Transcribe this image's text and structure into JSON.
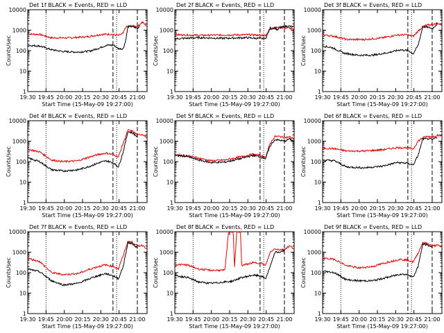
{
  "panel_titles": [
    "Det 1f BLACK = Events, RED = LLD",
    "Det 2f BLACK = Events, RED = LLD",
    "Det 3f BLACK = Events, RED = LLD",
    "Det 4f BLACK = Events, RED = LLD",
    "Det 5f BLACK = Events, RED = LLD",
    "Det 6f BLACK = Events, RED = LLD",
    "Det 7f BLACK = Events, RED = LLD",
    "Det 8f BLACK = Events, RED = LLD",
    "Det 9f BLACK = Events, RED = LLD"
  ],
  "chart_data": {
    "type": "line",
    "xlabel": "Start Time (15-May-09 19:27:00)",
    "ylabel": "Counts/sec",
    "y_scale": "log",
    "ylim": [
      1,
      10000
    ],
    "y_ticks": [
      "1",
      "10",
      "100",
      "1000",
      "10000"
    ],
    "xlim": [
      "19:30",
      "21:08"
    ],
    "x_ticks": [
      "19:30",
      "19:45",
      "20:00",
      "20:15",
      "20:30",
      "20:45",
      "21:00"
    ],
    "series_colors": {
      "events": "#000000",
      "lld": "#e00000"
    },
    "vertical_markers": [
      {
        "style": "dotted",
        "time": "19:45"
      },
      {
        "style": "dashed",
        "time": "20:40"
      },
      {
        "style": "dotted",
        "time": "20:43"
      },
      {
        "style": "dashed",
        "time": "21:00"
      }
    ],
    "panels": [
      {
        "det": "1f",
        "events": [
          [
            0,
            180
          ],
          [
            0.1,
            170
          ],
          [
            0.2,
            110
          ],
          [
            0.3,
            90
          ],
          [
            0.42,
            85
          ],
          [
            0.52,
            95
          ],
          [
            0.6,
            135
          ],
          [
            0.66,
            185
          ],
          [
            0.72,
            185
          ],
          [
            0.76,
            125
          ],
          [
            0.8,
            125
          ],
          [
            0.82,
            300
          ],
          [
            0.84,
            1500
          ],
          [
            0.88,
            1500
          ],
          [
            0.92,
            1200
          ],
          [
            0.94,
            1700
          ]
        ],
        "lld": [
          [
            0,
            650
          ],
          [
            0.1,
            620
          ],
          [
            0.2,
            420
          ],
          [
            0.35,
            420
          ],
          [
            0.5,
            480
          ],
          [
            0.62,
            620
          ],
          [
            0.7,
            640
          ],
          [
            0.76,
            550
          ],
          [
            0.8,
            700
          ],
          [
            0.82,
            1400
          ],
          [
            0.87,
            1600
          ],
          [
            0.92,
            1500
          ],
          [
            0.96,
            2500
          ],
          [
            1,
            1500
          ]
        ]
      },
      {
        "det": "2f",
        "events": [
          [
            0,
            380
          ],
          [
            0.2,
            430
          ],
          [
            0.4,
            400
          ],
          [
            0.6,
            430
          ],
          [
            0.76,
            380
          ],
          [
            0.8,
            1300
          ],
          [
            0.84,
            1300
          ],
          [
            0.86,
            1000
          ],
          [
            0.88,
            1300
          ],
          [
            0.92,
            1500
          ],
          [
            0.95,
            1600
          ],
          [
            1,
            1400
          ]
        ],
        "lld": [
          [
            0,
            600
          ],
          [
            0.2,
            560
          ],
          [
            0.4,
            580
          ],
          [
            0.6,
            600
          ],
          [
            0.76,
            560
          ],
          [
            0.8,
            1100
          ],
          [
            0.84,
            1300
          ],
          [
            0.88,
            1400
          ],
          [
            0.92,
            1300
          ],
          [
            0.96,
            1300
          ],
          [
            1,
            1000
          ]
        ]
      },
      {
        "det": "3f",
        "events": [
          [
            0,
            170
          ],
          [
            0.08,
            140
          ],
          [
            0.18,
            75
          ],
          [
            0.3,
            60
          ],
          [
            0.42,
            60
          ],
          [
            0.55,
            80
          ],
          [
            0.65,
            110
          ],
          [
            0.72,
            100
          ],
          [
            0.76,
            70
          ],
          [
            0.8,
            180
          ],
          [
            0.84,
            1500
          ],
          [
            0.88,
            1400
          ],
          [
            0.92,
            1200
          ],
          [
            0.96,
            2000
          ]
        ],
        "lld": [
          [
            0,
            600
          ],
          [
            0.1,
            500
          ],
          [
            0.2,
            350
          ],
          [
            0.35,
            350
          ],
          [
            0.5,
            420
          ],
          [
            0.62,
            580
          ],
          [
            0.7,
            600
          ],
          [
            0.76,
            500
          ],
          [
            0.8,
            900
          ],
          [
            0.84,
            1500
          ],
          [
            0.88,
            1800
          ],
          [
            0.93,
            1900
          ],
          [
            0.96,
            2200
          ],
          [
            1,
            1800
          ]
        ]
      },
      {
        "det": "4f",
        "events": [
          [
            0,
            150
          ],
          [
            0.1,
            100
          ],
          [
            0.2,
            40
          ],
          [
            0.3,
            35
          ],
          [
            0.42,
            40
          ],
          [
            0.52,
            60
          ],
          [
            0.6,
            90
          ],
          [
            0.66,
            110
          ],
          [
            0.72,
            85
          ],
          [
            0.76,
            55
          ],
          [
            0.8,
            300
          ],
          [
            0.84,
            3000
          ],
          [
            0.88,
            2500
          ],
          [
            0.92,
            1600
          ]
        ],
        "lld": [
          [
            0,
            400
          ],
          [
            0.1,
            300
          ],
          [
            0.2,
            120
          ],
          [
            0.3,
            100
          ],
          [
            0.42,
            110
          ],
          [
            0.52,
            170
          ],
          [
            0.6,
            230
          ],
          [
            0.66,
            260
          ],
          [
            0.72,
            220
          ],
          [
            0.76,
            170
          ],
          [
            0.8,
            800
          ],
          [
            0.84,
            3500
          ],
          [
            0.88,
            3000
          ],
          [
            0.92,
            2000
          ],
          [
            0.96,
            2200
          ],
          [
            1,
            1500
          ]
        ]
      },
      {
        "det": "5f",
        "events": [
          [
            0,
            200
          ],
          [
            0.1,
            180
          ],
          [
            0.2,
            120
          ],
          [
            0.3,
            90
          ],
          [
            0.42,
            95
          ],
          [
            0.55,
            140
          ],
          [
            0.65,
            200
          ],
          [
            0.72,
            170
          ],
          [
            0.76,
            140
          ],
          [
            0.8,
            600
          ],
          [
            0.84,
            1200
          ],
          [
            0.88,
            1100
          ],
          [
            0.92,
            1000
          ],
          [
            0.96,
            1300
          ],
          [
            1,
            1000
          ]
        ],
        "lld": [
          [
            0,
            220
          ],
          [
            0.1,
            200
          ],
          [
            0.2,
            150
          ],
          [
            0.3,
            110
          ],
          [
            0.42,
            120
          ],
          [
            0.55,
            170
          ],
          [
            0.65,
            230
          ],
          [
            0.72,
            200
          ],
          [
            0.76,
            160
          ],
          [
            0.8,
            800
          ],
          [
            0.84,
            1700
          ],
          [
            0.88,
            1700
          ],
          [
            0.92,
            1500
          ],
          [
            0.96,
            1600
          ],
          [
            1,
            1300
          ]
        ]
      },
      {
        "det": "6f",
        "events": [
          [
            0,
            120
          ],
          [
            0.1,
            110
          ],
          [
            0.2,
            55
          ],
          [
            0.35,
            50
          ],
          [
            0.5,
            60
          ],
          [
            0.62,
            90
          ],
          [
            0.7,
            85
          ],
          [
            0.76,
            70
          ],
          [
            0.8,
            200
          ],
          [
            0.84,
            1300
          ],
          [
            0.88,
            1300
          ],
          [
            0.92,
            1200
          ],
          [
            0.96,
            1600
          ]
        ],
        "lld": [
          [
            0,
            450
          ],
          [
            0.1,
            430
          ],
          [
            0.2,
            330
          ],
          [
            0.35,
            330
          ],
          [
            0.5,
            380
          ],
          [
            0.62,
            480
          ],
          [
            0.7,
            480
          ],
          [
            0.76,
            420
          ],
          [
            0.8,
            1000
          ],
          [
            0.84,
            1500
          ],
          [
            0.88,
            1700
          ],
          [
            0.92,
            1600
          ],
          [
            0.96,
            2000
          ],
          [
            1,
            1800
          ]
        ]
      },
      {
        "det": "7f",
        "events": [
          [
            0,
            150
          ],
          [
            0.1,
            110
          ],
          [
            0.2,
            40
          ],
          [
            0.3,
            25
          ],
          [
            0.42,
            30
          ],
          [
            0.55,
            60
          ],
          [
            0.65,
            90
          ],
          [
            0.72,
            70
          ],
          [
            0.76,
            50
          ],
          [
            0.8,
            200
          ],
          [
            0.84,
            3000
          ],
          [
            0.88,
            2500
          ],
          [
            0.92,
            1600
          ]
        ],
        "lld": [
          [
            0,
            500
          ],
          [
            0.1,
            350
          ],
          [
            0.2,
            100
          ],
          [
            0.3,
            80
          ],
          [
            0.42,
            90
          ],
          [
            0.55,
            170
          ],
          [
            0.65,
            240
          ],
          [
            0.72,
            200
          ],
          [
            0.76,
            150
          ],
          [
            0.8,
            700
          ],
          [
            0.84,
            3500
          ],
          [
            0.88,
            3000
          ],
          [
            0.92,
            2000
          ],
          [
            0.96,
            2200
          ],
          [
            1,
            1500
          ]
        ]
      },
      {
        "det": "8f",
        "events": [
          [
            0,
            70
          ],
          [
            0.1,
            60
          ],
          [
            0.2,
            35
          ],
          [
            0.3,
            30
          ],
          [
            0.42,
            35
          ],
          [
            0.48,
            38
          ],
          [
            0.55,
            55
          ],
          [
            0.65,
            75
          ],
          [
            0.72,
            70
          ],
          [
            0.76,
            50
          ],
          [
            0.8,
            200
          ],
          [
            0.84,
            1000
          ],
          [
            0.88,
            1000
          ],
          [
            0.92,
            1200
          ]
        ],
        "lld": [
          [
            0,
            250
          ],
          [
            0.1,
            240
          ],
          [
            0.2,
            150
          ],
          [
            0.3,
            130
          ],
          [
            0.42,
            130
          ],
          [
            0.45,
            10000
          ],
          [
            0.49,
            10000
          ],
          [
            0.5,
            200
          ],
          [
            0.52,
            10000
          ],
          [
            0.55,
            10000
          ],
          [
            0.56,
            220
          ],
          [
            0.65,
            300
          ],
          [
            0.72,
            300
          ],
          [
            0.76,
            220
          ],
          [
            0.8,
            1000
          ],
          [
            0.84,
            1500
          ],
          [
            0.88,
            1300
          ],
          [
            0.92,
            1400
          ],
          [
            0.96,
            2000
          ],
          [
            1,
            1500
          ]
        ]
      },
      {
        "det": "9f",
        "events": [
          [
            0,
            120
          ],
          [
            0.1,
            100
          ],
          [
            0.2,
            45
          ],
          [
            0.3,
            40
          ],
          [
            0.42,
            40
          ],
          [
            0.55,
            60
          ],
          [
            0.65,
            85
          ],
          [
            0.72,
            80
          ],
          [
            0.76,
            60
          ],
          [
            0.8,
            200
          ],
          [
            0.84,
            2500
          ],
          [
            0.88,
            2200
          ],
          [
            0.92,
            1700
          ]
        ],
        "lld": [
          [
            0,
            500
          ],
          [
            0.1,
            450
          ],
          [
            0.2,
            220
          ],
          [
            0.3,
            170
          ],
          [
            0.42,
            200
          ],
          [
            0.55,
            330
          ],
          [
            0.65,
            450
          ],
          [
            0.72,
            400
          ],
          [
            0.76,
            330
          ],
          [
            0.8,
            900
          ],
          [
            0.84,
            3000
          ],
          [
            0.88,
            2600
          ],
          [
            0.92,
            2000
          ],
          [
            0.96,
            2200
          ],
          [
            1,
            1800
          ]
        ]
      }
    ]
  }
}
